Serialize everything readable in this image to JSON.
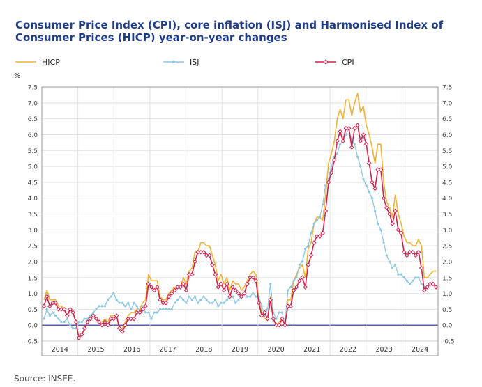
{
  "chart_data": {
    "type": "line",
    "title": "Consumer Price Index (CPI), core inflation (ISJ) and Harmonised Index of Consumer Prices (HICP) year-on-year changes",
    "ylabel": "%",
    "ylim": [
      -0.5,
      7.5
    ],
    "yticks": [
      "7.5",
      "7.0",
      "6.5",
      "6.0",
      "5.5",
      "5.0",
      "4.5",
      "4.0",
      "3.5",
      "3.0",
      "2.5",
      "2.0",
      "1.5",
      "1.0",
      "0.5",
      "0.0",
      "-0.5"
    ],
    "xlabels": [
      "2014",
      "2015",
      "2016",
      "2017",
      "2018",
      "2019",
      "2020",
      "2021",
      "2022",
      "2023",
      "2024"
    ],
    "grid": true,
    "legend_position": "top",
    "source": "Source: INSEE.",
    "series": [
      {
        "name": "HICP",
        "color": "#f2b233",
        "marker": "none",
        "values": [
          0.8,
          1.1,
          0.8,
          0.8,
          0.8,
          0.6,
          0.6,
          0.5,
          0.3,
          0.5,
          0.4,
          0.1,
          -0.4,
          -0.3,
          -0.1,
          0.1,
          0.3,
          0.3,
          0.2,
          0.1,
          0.1,
          0.2,
          0.1,
          0.3,
          0.3,
          0.3,
          -0.1,
          -0.1,
          0.1,
          0.3,
          0.4,
          0.4,
          0.5,
          0.5,
          0.7,
          0.8,
          1.6,
          1.4,
          1.4,
          1.4,
          0.9,
          0.8,
          0.8,
          1.0,
          1.1,
          1.2,
          1.2,
          1.2,
          1.5,
          1.3,
          1.7,
          1.8,
          2.3,
          2.3,
          2.6,
          2.6,
          2.5,
          2.5,
          2.2,
          1.9,
          1.4,
          1.6,
          1.3,
          1.5,
          1.1,
          1.4,
          1.3,
          1.3,
          1.1,
          1.2,
          1.4,
          1.6,
          1.7,
          1.6,
          0.8,
          0.4,
          0.2,
          0.2,
          0.9,
          0.2,
          0.0,
          0.1,
          0.2,
          0.0,
          0.8,
          0.8,
          1.4,
          1.6,
          1.8,
          1.9,
          1.5,
          2.4,
          2.6,
          3.2,
          3.4,
          3.4,
          3.3,
          4.1,
          5.1,
          5.4,
          5.8,
          6.5,
          6.8,
          6.5,
          7.1,
          7.1,
          6.6,
          7.0,
          7.3,
          6.7,
          6.9,
          6.3,
          6.0,
          5.6,
          5.1,
          5.7,
          5.7,
          4.5,
          3.9,
          3.7,
          3.4,
          4.1,
          3.5,
          3.2,
          2.8,
          2.6,
          2.6,
          2.5,
          2.5,
          2.7,
          2.5,
          1.5,
          1.5,
          1.6,
          1.7,
          1.7
        ]
      },
      {
        "name": "ISJ",
        "color": "#8cc7e3",
        "marker": "dot",
        "values": [
          0.2,
          0.5,
          0.3,
          0.4,
          0.3,
          0.2,
          0.1,
          0.1,
          0.2,
          0.0,
          -0.1,
          -0.1,
          0.1,
          0.1,
          0.2,
          0.2,
          0.3,
          0.4,
          0.5,
          0.6,
          0.6,
          0.6,
          0.8,
          0.9,
          1.0,
          0.8,
          0.7,
          0.7,
          0.6,
          0.7,
          0.5,
          0.7,
          0.6,
          0.4,
          0.6,
          0.4,
          0.4,
          0.2,
          0.4,
          0.4,
          0.5,
          0.5,
          0.5,
          0.5,
          0.5,
          0.7,
          0.8,
          0.9,
          0.8,
          0.7,
          0.9,
          0.8,
          0.9,
          0.7,
          0.8,
          0.9,
          0.8,
          0.7,
          0.7,
          0.8,
          0.6,
          0.7,
          0.7,
          0.8,
          0.9,
          0.9,
          0.7,
          0.8,
          0.9,
          1.0,
          0.9,
          0.9,
          1.0,
          0.9,
          0.9,
          0.6,
          0.3,
          0.5,
          1.3,
          0.4,
          0.2,
          0.4,
          0.4,
          0.0,
          1.1,
          1.2,
          1.4,
          1.5,
          1.9,
          2.0,
          2.4,
          2.5,
          2.9,
          3.2,
          3.3,
          3.4,
          3.8,
          4.4,
          4.6,
          5.0,
          5.3,
          5.4,
          5.7,
          5.8,
          6.0,
          6.2,
          5.8,
          5.7,
          5.3,
          5.0,
          4.6,
          4.4,
          4.2,
          4.0,
          3.6,
          3.2,
          3.0,
          2.6,
          2.2,
          2.0,
          1.8,
          1.9,
          1.6,
          1.6,
          1.5,
          1.4,
          1.3,
          1.4,
          1.5,
          1.5,
          1.3,
          1.2
        ]
      },
      {
        "name": "CPI",
        "color": "#d61f4c",
        "marker": "diamond",
        "values": [
          0.6,
          0.9,
          0.6,
          0.7,
          0.7,
          0.5,
          0.5,
          0.5,
          0.3,
          0.5,
          0.4,
          0.1,
          -0.4,
          -0.3,
          -0.1,
          0.1,
          0.2,
          0.3,
          0.2,
          0.1,
          0.0,
          0.1,
          0.0,
          0.2,
          0.2,
          0.3,
          -0.1,
          -0.2,
          0.0,
          0.2,
          0.2,
          0.2,
          0.4,
          0.4,
          0.5,
          0.6,
          1.3,
          1.2,
          1.1,
          1.2,
          0.8,
          0.7,
          0.7,
          0.9,
          1.0,
          1.1,
          1.2,
          1.2,
          1.3,
          1.1,
          1.6,
          1.6,
          2.0,
          2.3,
          2.3,
          2.3,
          2.2,
          2.2,
          1.9,
          1.6,
          1.2,
          1.3,
          1.1,
          1.3,
          0.9,
          1.2,
          1.1,
          1.0,
          0.9,
          1.0,
          1.3,
          1.5,
          1.5,
          1.4,
          0.7,
          0.3,
          0.4,
          0.2,
          0.8,
          0.2,
          0.0,
          0.0,
          0.2,
          0.0,
          0.6,
          0.6,
          1.1,
          1.2,
          1.4,
          1.5,
          1.2,
          1.9,
          2.2,
          2.6,
          2.8,
          2.8,
          2.9,
          3.6,
          4.5,
          4.8,
          5.2,
          5.8,
          6.1,
          5.8,
          6.2,
          6.2,
          5.6,
          6.2,
          6.3,
          5.8,
          6.0,
          5.7,
          5.1,
          4.5,
          4.3,
          4.9,
          4.9,
          4.0,
          3.7,
          3.5,
          3.2,
          3.6,
          3.0,
          2.9,
          2.3,
          2.2,
          2.3,
          2.3,
          2.2,
          2.3,
          1.8,
          1.1,
          1.2,
          1.3,
          1.3,
          1.2
        ]
      }
    ]
  }
}
